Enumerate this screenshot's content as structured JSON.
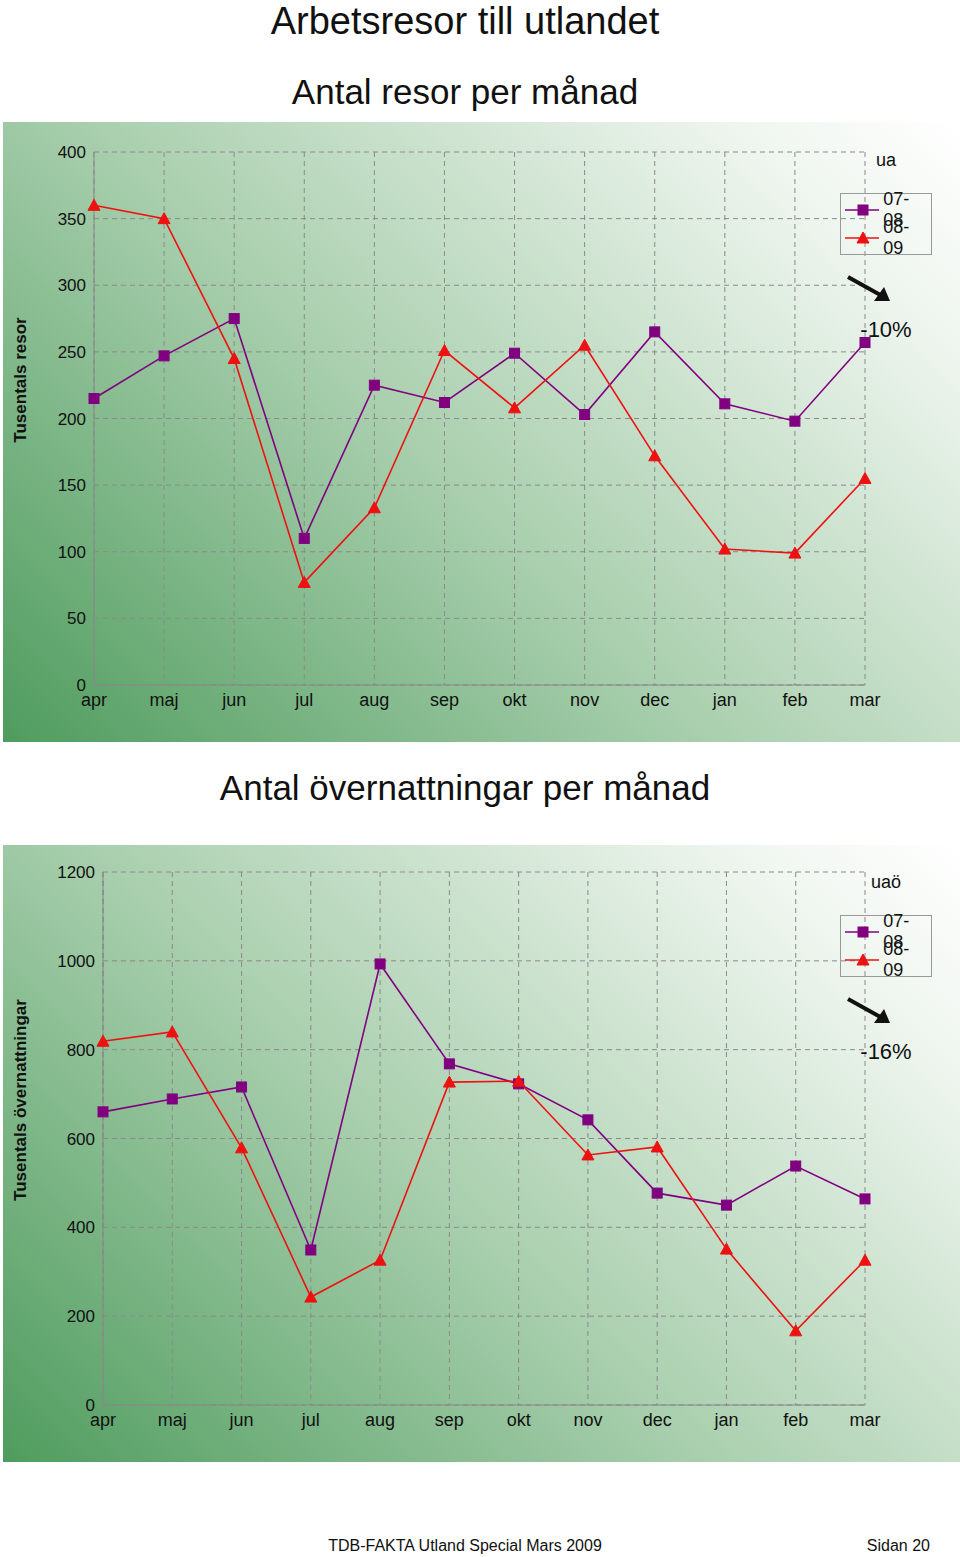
{
  "title": "Arbetsresor till utlandet",
  "chart_data": [
    {
      "type": "line",
      "title": "Antal resor per månad",
      "y_label": "Tusentals resor",
      "categories": [
        "apr",
        "maj",
        "jun",
        "jul",
        "aug",
        "sep",
        "okt",
        "nov",
        "dec",
        "jan",
        "feb",
        "mar"
      ],
      "series": [
        {
          "name": "07-08",
          "color": "#800080",
          "marker": "square",
          "values": [
            215,
            247,
            275,
            110,
            225,
            212,
            249,
            203,
            265,
            211,
            198,
            257
          ]
        },
        {
          "name": "08-09",
          "color": "#ee1111",
          "marker": "triangle",
          "values": [
            360,
            350,
            245,
            77,
            133,
            251,
            208,
            255,
            172,
            102,
            99,
            155
          ]
        }
      ],
      "ylim": [
        0,
        400
      ],
      "yticks": [
        0,
        50,
        100,
        150,
        200,
        250,
        300,
        350,
        400
      ],
      "grid": true,
      "legend": "upper right",
      "annotations": [
        "ua",
        "-10%"
      ]
    },
    {
      "type": "line",
      "title": "Antal övernattningar per månad",
      "y_label": "Tusentals övernattningar",
      "categories": [
        "apr",
        "maj",
        "jun",
        "jul",
        "aug",
        "sep",
        "okt",
        "nov",
        "dec",
        "jan",
        "feb",
        "mar"
      ],
      "series": [
        {
          "name": "07-08",
          "color": "#800080",
          "marker": "square",
          "values": [
            660,
            689,
            716,
            349,
            993,
            768,
            723,
            642,
            477,
            450,
            538,
            464
          ]
        },
        {
          "name": "08-09",
          "color": "#ee1111",
          "marker": "triangle",
          "values": [
            819,
            840,
            579,
            243,
            326,
            727,
            729,
            563,
            581,
            351,
            167,
            326
          ]
        }
      ],
      "ylim": [
        0,
        1200
      ],
      "yticks": [
        0,
        200,
        400,
        600,
        800,
        1000,
        1200
      ],
      "grid": true,
      "legend": "upper right",
      "annotations": [
        "uaö",
        "-16%"
      ]
    }
  ],
  "footer": {
    "left": "TDB-FAKTA Utland Special Mars 2009",
    "right": "Sidan 20"
  }
}
